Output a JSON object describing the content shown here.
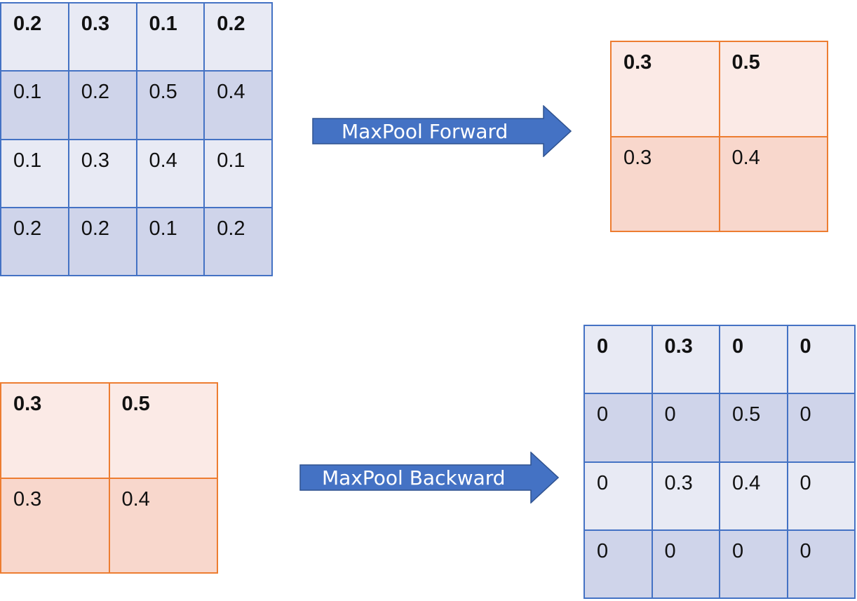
{
  "colors": {
    "blue_border": "#4472c4",
    "blue_light": "#e8eaf4",
    "blue_dark": "#cfd4ea",
    "orange_border": "#ed7d31",
    "orange_light": "#fbeae6",
    "orange_dark": "#f8d7cc",
    "arrow_fill": "#4472c4"
  },
  "input_matrix": {
    "rows": [
      [
        "0.2",
        "0.3",
        "0.1",
        "0.2"
      ],
      [
        "0.1",
        "0.2",
        "0.5",
        "0.4"
      ],
      [
        "0.1",
        "0.3",
        "0.4",
        "0.1"
      ],
      [
        "0.2",
        "0.2",
        "0.1",
        "0.2"
      ]
    ]
  },
  "forward_arrow": {
    "label": "MaxPool Forward"
  },
  "pooled_matrix": {
    "rows": [
      [
        "0.3",
        "0.5"
      ],
      [
        "0.3",
        "0.4"
      ]
    ]
  },
  "gradient_matrix": {
    "rows": [
      [
        "0.3",
        "0.5"
      ],
      [
        "0.3",
        "0.4"
      ]
    ]
  },
  "backward_arrow": {
    "label": "MaxPool Backward"
  },
  "output_matrix": {
    "rows": [
      [
        "0",
        "0.3",
        "0",
        "0"
      ],
      [
        "0",
        "0",
        "0.5",
        "0"
      ],
      [
        "0",
        "0.3",
        "0.4",
        "0"
      ],
      [
        "0",
        "0",
        "0",
        "0"
      ]
    ]
  }
}
